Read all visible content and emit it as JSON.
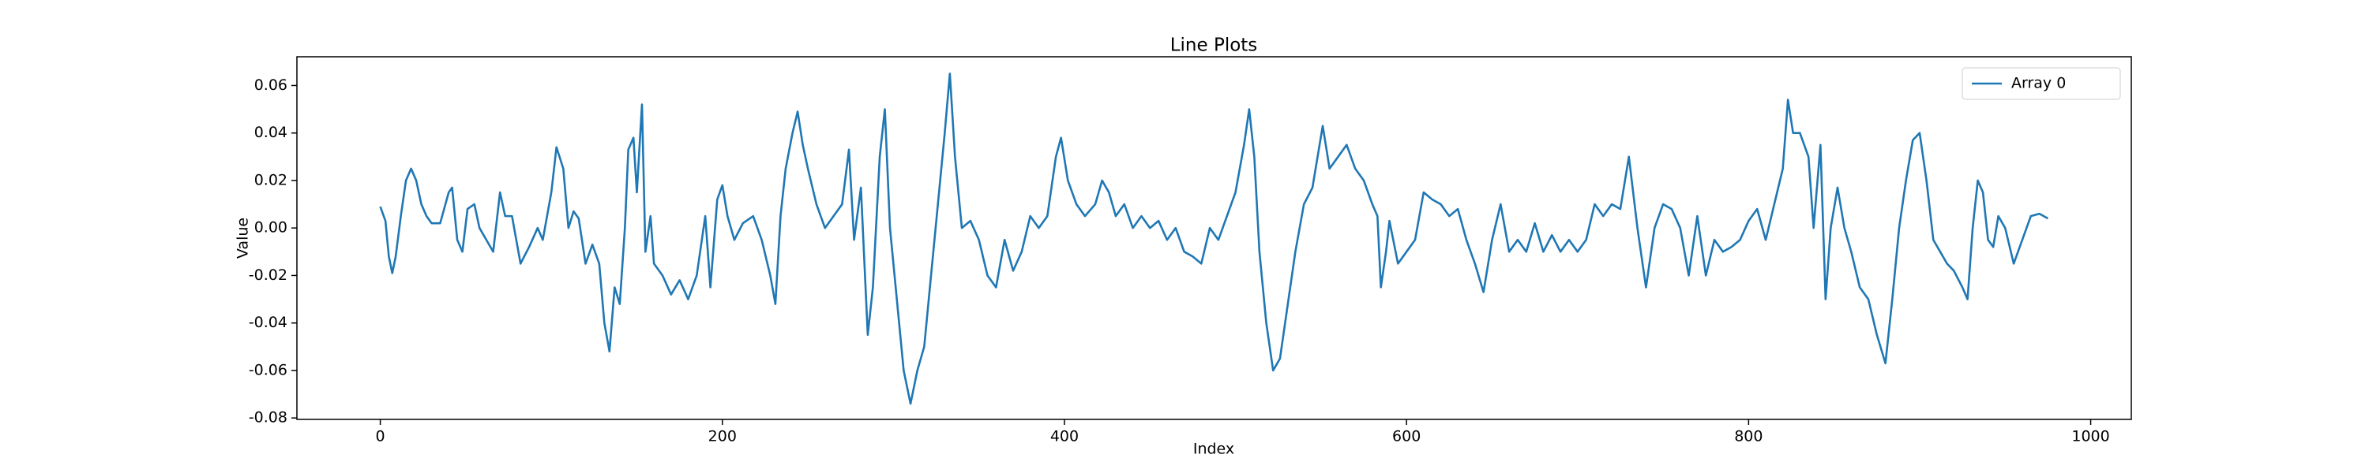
{
  "chart_data": {
    "type": "line",
    "title": "Line Plots",
    "x_label": "Index",
    "y_label": "Value",
    "legend": "upper right",
    "x": [
      0,
      3,
      5,
      7,
      9,
      12,
      15,
      18,
      21,
      24,
      27,
      30,
      35,
      40,
      42,
      45,
      48,
      51,
      55,
      58,
      62,
      66,
      70,
      73,
      77,
      82,
      87,
      92,
      95,
      100,
      103,
      107,
      110,
      113,
      116,
      120,
      124,
      128,
      131,
      134,
      137,
      140,
      143,
      145,
      148,
      150,
      153,
      155,
      158,
      160,
      165,
      170,
      175,
      180,
      185,
      190,
      193,
      197,
      200,
      203,
      207,
      212,
      218,
      223,
      228,
      231,
      234,
      237,
      241,
      244,
      247,
      250,
      255,
      260,
      265,
      270,
      274,
      277,
      281,
      285,
      288,
      292,
      295,
      298,
      302,
      306,
      310,
      314,
      318,
      322,
      326,
      330,
      333,
      336,
      340,
      345,
      350,
      355,
      360,
      365,
      370,
      375,
      380,
      385,
      390,
      395,
      398,
      402,
      407,
      412,
      418,
      422,
      426,
      430,
      435,
      440,
      445,
      450,
      455,
      460,
      465,
      470,
      475,
      480,
      485,
      490,
      495,
      500,
      505,
      508,
      511,
      514,
      518,
      522,
      526,
      530,
      535,
      540,
      545,
      548,
      551,
      555,
      560,
      565,
      570,
      575,
      580,
      583,
      585,
      588,
      590,
      595,
      600,
      605,
      610,
      615,
      620,
      625,
      630,
      635,
      640,
      645,
      650,
      655,
      660,
      665,
      670,
      675,
      680,
      685,
      690,
      695,
      700,
      705,
      710,
      715,
      720,
      725,
      730,
      735,
      740,
      745,
      750,
      755,
      760,
      765,
      770,
      775,
      780,
      785,
      790,
      795,
      800,
      805,
      810,
      815,
      820,
      823,
      826,
      830,
      835,
      838,
      842,
      845,
      848,
      852,
      856,
      860,
      865,
      870,
      875,
      880,
      884,
      888,
      892,
      896,
      900,
      904,
      908,
      912,
      916,
      920,
      925,
      928,
      931,
      934,
      937,
      940,
      943,
      946,
      950,
      955,
      960,
      965,
      970,
      975
    ],
    "series": [
      {
        "name": "Array 0",
        "color": "#1f77b4",
        "values": [
          0.009,
          0.003,
          -0.012,
          -0.019,
          -0.012,
          0.005,
          0.02,
          0.025,
          0.02,
          0.01,
          0.005,
          0.002,
          0.002,
          0.015,
          0.017,
          -0.005,
          -0.01,
          0.008,
          0.01,
          0.0,
          -0.005,
          -0.01,
          0.015,
          0.005,
          0.005,
          -0.015,
          -0.008,
          0.0,
          -0.005,
          0.015,
          0.034,
          0.025,
          0.0,
          0.007,
          0.004,
          -0.015,
          -0.007,
          -0.015,
          -0.04,
          -0.052,
          -0.025,
          -0.032,
          0.0,
          0.033,
          0.038,
          0.015,
          0.052,
          -0.01,
          0.005,
          -0.015,
          -0.02,
          -0.028,
          -0.022,
          -0.03,
          -0.02,
          0.005,
          -0.025,
          0.012,
          0.018,
          0.005,
          -0.005,
          0.002,
          0.005,
          -0.005,
          -0.02,
          -0.032,
          0.005,
          0.025,
          0.04,
          0.049,
          0.035,
          0.025,
          0.01,
          0.0,
          0.005,
          0.01,
          0.033,
          -0.005,
          0.017,
          -0.045,
          -0.025,
          0.03,
          0.05,
          0.0,
          -0.03,
          -0.06,
          -0.074,
          -0.06,
          -0.05,
          -0.02,
          0.01,
          0.04,
          0.065,
          0.03,
          0.0,
          0.003,
          -0.005,
          -0.02,
          -0.025,
          -0.005,
          -0.018,
          -0.01,
          0.005,
          0.0,
          0.005,
          0.03,
          0.038,
          0.02,
          0.01,
          0.005,
          0.01,
          0.02,
          0.015,
          0.005,
          0.01,
          0.0,
          0.005,
          0.0,
          0.003,
          -0.005,
          0.0,
          -0.01,
          -0.012,
          -0.015,
          0.0,
          -0.005,
          0.005,
          0.015,
          0.035,
          0.05,
          0.03,
          -0.01,
          -0.04,
          -0.06,
          -0.055,
          -0.035,
          -0.01,
          0.01,
          0.017,
          0.03,
          0.043,
          0.025,
          0.03,
          0.035,
          0.025,
          0.02,
          0.01,
          0.005,
          -0.025,
          -0.01,
          0.003,
          -0.015,
          -0.01,
          -0.005,
          0.015,
          0.012,
          0.01,
          0.005,
          0.008,
          -0.005,
          -0.015,
          -0.027,
          -0.005,
          0.01,
          -0.01,
          -0.005,
          -0.01,
          0.002,
          -0.01,
          -0.003,
          -0.01,
          -0.005,
          -0.01,
          -0.005,
          0.01,
          0.005,
          0.01,
          0.008,
          0.03,
          0.0,
          -0.025,
          0.0,
          0.01,
          0.008,
          0.0,
          -0.02,
          0.005,
          -0.02,
          -0.005,
          -0.01,
          -0.008,
          -0.005,
          0.003,
          0.008,
          -0.005,
          0.01,
          0.025,
          0.054,
          0.04,
          0.04,
          0.03,
          0.0,
          0.035,
          -0.03,
          0.0,
          0.017,
          0.0,
          -0.01,
          -0.025,
          -0.03,
          -0.045,
          -0.057,
          -0.03,
          0.0,
          0.02,
          0.037,
          0.04,
          0.02,
          -0.005,
          -0.01,
          -0.015,
          -0.018,
          -0.025,
          -0.03,
          0.0,
          0.02,
          0.015,
          -0.005,
          -0.008,
          0.005,
          0.0,
          -0.015,
          -0.005,
          0.005,
          0.006,
          0.004
        ]
      }
    ],
    "xlim": [
      -48.75,
      1023.75
    ],
    "xticks": [
      0,
      200,
      400,
      600,
      800,
      1000
    ],
    "ylim": [
      -0.0806,
      0.0721
    ],
    "yticks": [
      -0.08,
      -0.06,
      -0.04,
      -0.02,
      {
        "value": 0,
        "label": "0.00"
      },
      0.02,
      0.04,
      0.06
    ]
  }
}
